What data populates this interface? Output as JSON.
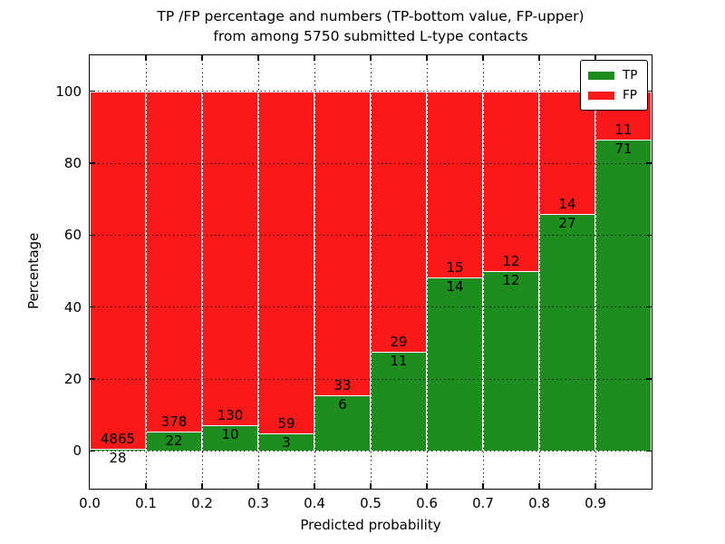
{
  "chart_data": {
    "type": "bar",
    "stacked": true,
    "title_line1": "TP /FP percentage and numbers (TP-bottom value, FP-upper)",
    "title_line2": "from among 5750 submitted L-type contacts",
    "xlabel": "Predicted probability",
    "ylabel": "Percentage",
    "total_contacts": 5750,
    "xlim": [
      0.0,
      1.0
    ],
    "ylim": [
      -10.5,
      110
    ],
    "bin_width": 0.1,
    "x_tick_labels": [
      "0.0",
      "0.1",
      "0.2",
      "0.3",
      "0.4",
      "0.5",
      "0.6",
      "0.7",
      "0.8",
      "0.9"
    ],
    "y_tick_values": [
      0,
      20,
      40,
      60,
      80,
      100
    ],
    "grid": "dotted black, drawn above bars",
    "value_semantics": "green TP% = tp/(tp+fp)*100, red FP% stacked to 100; TP count below boundary, FP count above boundary",
    "legend": {
      "position": "upper right",
      "entries": [
        {
          "label": "TP",
          "color": "#1e8c1e"
        },
        {
          "label": "FP",
          "color": "#fa1919"
        }
      ]
    },
    "bins": [
      {
        "range": "0.0-0.1",
        "tp": 28,
        "fp": 4865
      },
      {
        "range": "0.1-0.2",
        "tp": 22,
        "fp": 378
      },
      {
        "range": "0.2-0.3",
        "tp": 10,
        "fp": 130
      },
      {
        "range": "0.3-0.4",
        "tp": 3,
        "fp": 59
      },
      {
        "range": "0.4-0.5",
        "tp": 6,
        "fp": 33
      },
      {
        "range": "0.5-0.6",
        "tp": 11,
        "fp": 29
      },
      {
        "range": "0.6-0.7",
        "tp": 14,
        "fp": 15
      },
      {
        "range": "0.7-0.8",
        "tp": 12,
        "fp": 12
      },
      {
        "range": "0.8-0.9",
        "tp": 27,
        "fp": 14
      },
      {
        "range": "0.9-1.0",
        "tp": 71,
        "fp": 11
      }
    ],
    "colors": {
      "tp_bar": "#1e8c1e",
      "fp_bar": "#fa1919",
      "bar_edge": "#ffffff",
      "grid": "#000000",
      "background": "#ffffff"
    }
  }
}
